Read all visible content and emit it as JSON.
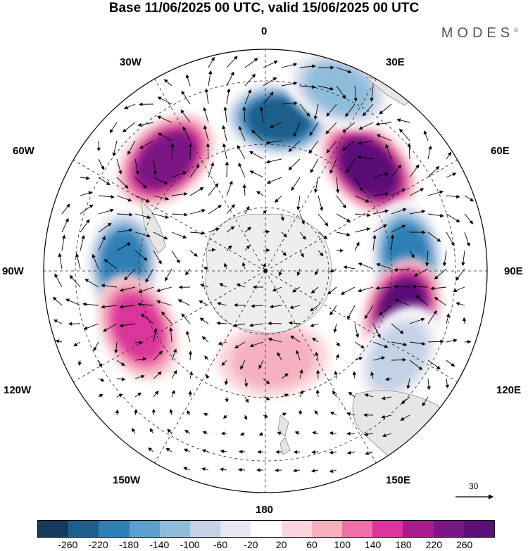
{
  "title": "Base 11/06/2025 00 UTC, valid 15/06/2025 00 UTC",
  "brand": "MODES",
  "brand_mark": "©",
  "longitude_labels": {
    "top": "0",
    "top_left": "30W",
    "top_right": "30E",
    "upper_left": "60W",
    "upper_right": "60E",
    "left": "90W",
    "right": "90E",
    "lower_left": "120W",
    "lower_right": "120E",
    "bottom_left": "150W",
    "bottom_right": "150E",
    "bottom": "180"
  },
  "reference_vector": {
    "value": "30"
  },
  "colorbar": {
    "ticks": [
      "-260",
      "-220",
      "-180",
      "-140",
      "-100",
      "-60",
      "-20",
      "20",
      "60",
      "100",
      "140",
      "180",
      "220",
      "260"
    ],
    "colors": [
      "#123c5a",
      "#1f5f8c",
      "#2e7fb6",
      "#5ba0cd",
      "#90bcdc",
      "#c4d2e6",
      "#e6e6f2",
      "#ffffff",
      "#fad7dc",
      "#f6b0c0",
      "#ef6fa8",
      "#d9359a",
      "#a81b8a",
      "#7a1784",
      "#5a0e78"
    ]
  },
  "anomalies": [
    {
      "name": "trough-north",
      "lat": -42,
      "lon": 5,
      "value": -260
    },
    {
      "name": "ridge-upper-left",
      "lat": -43,
      "lon": -42,
      "value": 240
    },
    {
      "name": "ridge-upper-right",
      "lat": -44,
      "lon": 45,
      "value": 260
    },
    {
      "name": "trough-right",
      "lat": -45,
      "lon": 84,
      "value": -220
    },
    {
      "name": "ridge-right",
      "lat": -45,
      "lon": 107,
      "value": 260
    },
    {
      "name": "trough-left",
      "lat": -45,
      "lon": -87,
      "value": -220
    },
    {
      "name": "ridge-lower-left",
      "lat": -46,
      "lon": -114,
      "value": 140
    },
    {
      "name": "trough-lower-right",
      "lat": -40,
      "lon": 123,
      "value": -120
    },
    {
      "name": "trough-far-upper-right",
      "lat": -28,
      "lon": 22,
      "value": -140
    },
    {
      "name": "ridge-center-bottom",
      "lat": -62,
      "lon": 175,
      "value": 80
    }
  ]
}
